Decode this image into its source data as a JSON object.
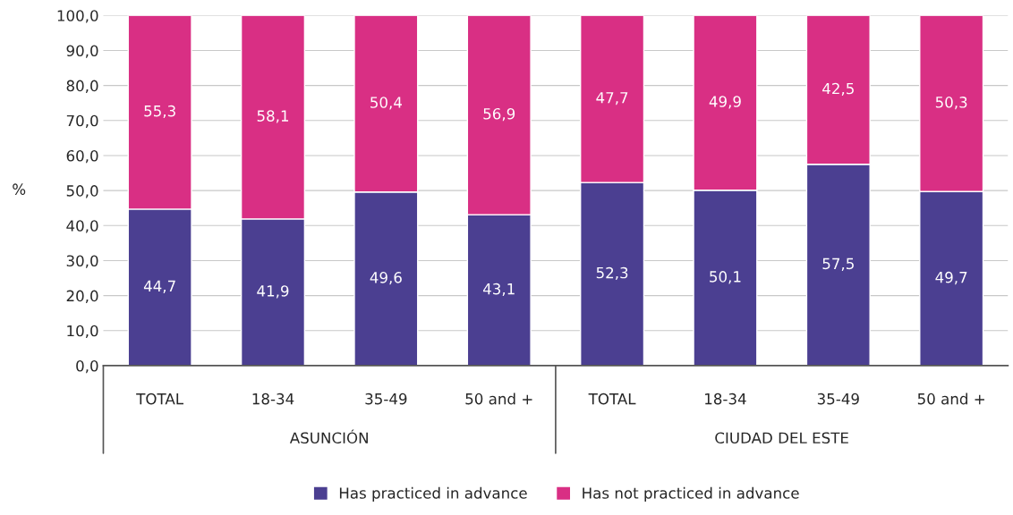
{
  "chart_data": {
    "type": "bar",
    "stacked": true,
    "ylabel": "%",
    "categories": [
      "TOTAL",
      "18-34",
      "35-49",
      "50 and +",
      "TOTAL",
      "18-34",
      "35-49",
      "50 and +"
    ],
    "series": [
      {
        "name": "Has practiced in advance",
        "color": "#4b3f91",
        "values": [
          44.7,
          41.9,
          49.6,
          43.1,
          52.3,
          50.1,
          57.5,
          49.7
        ],
        "value_labels": [
          "44,7",
          "41,9",
          "49,6",
          "43,1",
          "52,3",
          "50,1",
          "57,5",
          "49,7"
        ]
      },
      {
        "name": "Has not practiced in advance",
        "color": "#d92f84",
        "values": [
          55.3,
          58.1,
          50.4,
          56.9,
          47.7,
          49.9,
          42.5,
          50.3
        ],
        "value_labels": [
          "55,3",
          "58,1",
          "50,4",
          "56,9",
          "47,7",
          "49,9",
          "42,5",
          "50,3"
        ]
      }
    ],
    "annotations": [
      "ASUNCIÓN",
      "CIUDAD DEL ESTE"
    ],
    "ylim": [
      0,
      100
    ],
    "yticks": [
      {
        "value": 0,
        "label": "0,0"
      },
      {
        "value": 10,
        "label": "10,0"
      },
      {
        "value": 20,
        "label": "20,0"
      },
      {
        "value": 30,
        "label": "30,0"
      },
      {
        "value": 40,
        "label": "40,0"
      },
      {
        "value": 50,
        "label": "50,0"
      },
      {
        "value": 60,
        "label": "60,0"
      },
      {
        "value": 70,
        "label": "70,0"
      },
      {
        "value": 80,
        "label": "80,0"
      },
      {
        "value": 90,
        "label": "90,0"
      },
      {
        "value": 100,
        "label": "100,0"
      }
    ],
    "grid": "y",
    "legend": "bottom"
  }
}
